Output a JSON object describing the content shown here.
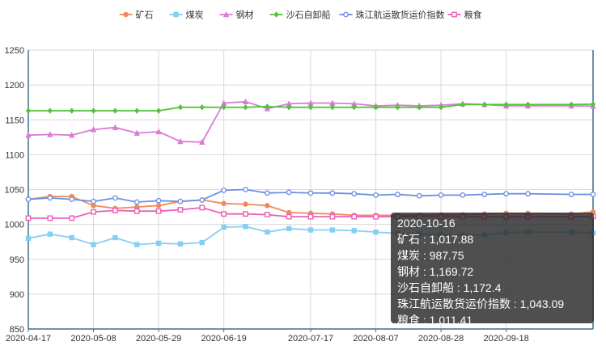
{
  "chart_data": {
    "type": "line",
    "title": "",
    "xlabel": "",
    "ylabel": "",
    "ylim": [
      850,
      1250
    ],
    "yticks": [
      850,
      900,
      950,
      1000,
      1050,
      1100,
      1150,
      1200,
      1250
    ],
    "xtick_labels": [
      "2020-04-17",
      "2020-05-08",
      "2020-05-29",
      "2020-06-19",
      "2020-07-17",
      "2020-08-07",
      "2020-08-28",
      "2020-09-18"
    ],
    "grid": true,
    "legend_position": "top",
    "x": [
      "2020-04-17",
      "2020-04-24",
      "2020-05-01",
      "2020-05-08",
      "2020-05-15",
      "2020-05-22",
      "2020-05-29",
      "2020-06-05",
      "2020-06-12",
      "2020-06-19",
      "2020-06-26",
      "2020-07-03",
      "2020-07-10",
      "2020-07-17",
      "2020-07-24",
      "2020-07-31",
      "2020-08-07",
      "2020-08-14",
      "2020-08-21",
      "2020-08-28",
      "2020-09-04",
      "2020-09-11",
      "2020-09-18",
      "2020-09-25",
      "2020-10-09",
      "2020-10-16"
    ],
    "series": [
      {
        "name": "矿石",
        "color": "#f08a5d",
        "marker": "circle",
        "values": [
          1036,
          1040,
          1040,
          1027,
          1023,
          1025,
          1027,
          1033,
          1035,
          1030,
          1029,
          1027,
          1017,
          1016,
          1015,
          1013,
          1013,
          1013,
          1013,
          1014,
          1014,
          1015,
          1016,
          1016,
          1015,
          1017.88
        ]
      },
      {
        "name": "煤炭",
        "color": "#87cef3",
        "marker": "square",
        "values": [
          980,
          986,
          981,
          971,
          981,
          971,
          973,
          972,
          974,
          996,
          997,
          989,
          994,
          992,
          992,
          991,
          989,
          987,
          986,
          985,
          985,
          985,
          988,
          989,
          989,
          987.75
        ]
      },
      {
        "name": "钢材",
        "color": "#d97bd7",
        "marker": "triangle",
        "values": [
          1128,
          1129,
          1128,
          1136,
          1139,
          1131,
          1133,
          1119,
          1118,
          1174,
          1176,
          1166,
          1173,
          1174,
          1174,
          1173,
          1170,
          1171,
          1170,
          1171,
          1173,
          1172,
          1170,
          1170,
          1170,
          1169.72
        ]
      },
      {
        "name": "沙石自卸船",
        "color": "#52c43a",
        "marker": "diamond",
        "values": [
          1163,
          1163,
          1163,
          1163,
          1163,
          1163,
          1163,
          1168,
          1168,
          1168,
          1168,
          1169,
          1168,
          1168,
          1168,
          1168,
          1168,
          1168,
          1168,
          1168,
          1172,
          1172,
          1172,
          1172,
          1172,
          1172.4
        ]
      },
      {
        "name": "珠江航运散货运价指数",
        "color": "#6e8fe3",
        "marker": "empty-circle",
        "values": [
          1036,
          1038,
          1036,
          1033,
          1038,
          1032,
          1034,
          1033,
          1035,
          1049,
          1050,
          1045,
          1046,
          1045,
          1045,
          1044,
          1042,
          1043,
          1041,
          1042,
          1042,
          1043,
          1044,
          1044,
          1043,
          1043.09
        ]
      },
      {
        "name": "粮食",
        "color": "#ea5fb7",
        "marker": "empty-square",
        "values": [
          1009,
          1009,
          1009,
          1018,
          1020,
          1019,
          1019,
          1021,
          1024,
          1015,
          1015,
          1014,
          1011,
          1011,
          1011,
          1011,
          1011,
          1011,
          1011,
          1011,
          1011,
          1011,
          1011,
          1011,
          1011,
          1011.41
        ]
      }
    ]
  },
  "tooltip": {
    "date": "2020-10-16",
    "rows": [
      "矿石 : 1,017.88",
      "煤炭 : 987.75",
      "钢材 : 1,169.72",
      "沙石自卸船 : 1,172.4",
      "珠江航运散货运价指数 : 1,043.09",
      "粮食 : 1,011.41"
    ]
  },
  "colors": {
    "axis": "#3e6e8c",
    "grid": "#d9d9d9",
    "text": "#333333"
  }
}
